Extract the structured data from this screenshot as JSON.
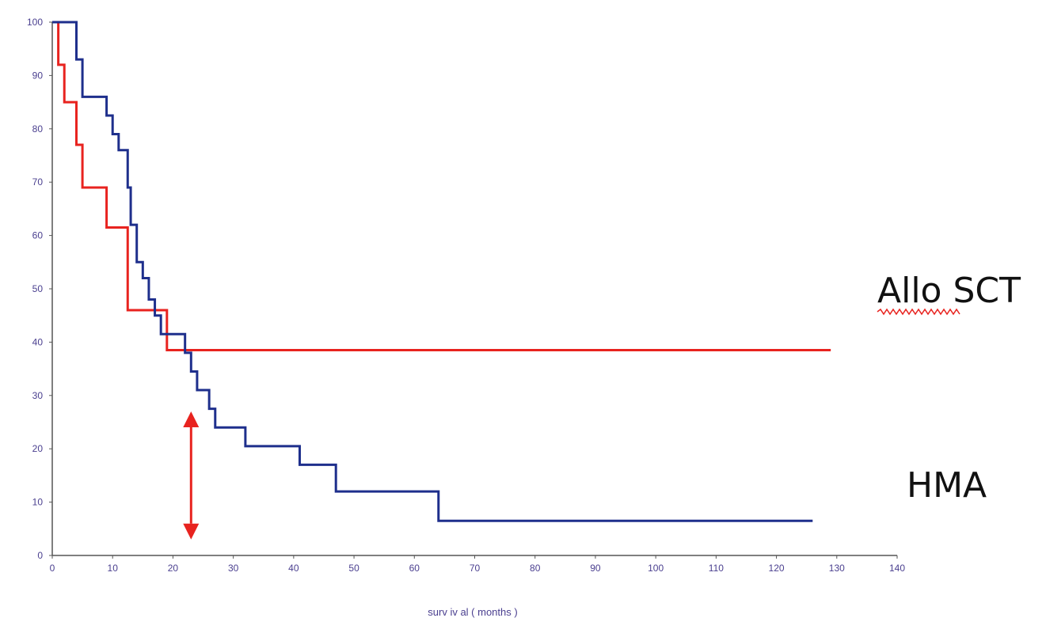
{
  "chart_data": {
    "type": "line",
    "step": true,
    "xlabel": "surv iv al ( months )",
    "ylabel": "",
    "title": "",
    "xlim": [
      0,
      140
    ],
    "ylim": [
      0,
      100
    ],
    "x_ticks": [
      0,
      10,
      20,
      30,
      40,
      50,
      60,
      70,
      80,
      90,
      100,
      110,
      120,
      130,
      140
    ],
    "y_ticks": [
      0,
      10,
      20,
      30,
      40,
      50,
      60,
      70,
      80,
      90,
      100
    ],
    "grid": false,
    "series": [
      {
        "name": "Allo SCT",
        "color": "#e8231f",
        "x": [
          0,
          1,
          2,
          4,
          5,
          9,
          12.5,
          19,
          129
        ],
        "y": [
          100,
          92,
          85,
          77,
          69,
          61.5,
          46,
          38.5,
          38.5
        ]
      },
      {
        "name": "HMA",
        "color": "#1e2f8c",
        "x": [
          0,
          3,
          4,
          5,
          9,
          10,
          11,
          12.5,
          13,
          14,
          15,
          16,
          17,
          18,
          22,
          23,
          24,
          26,
          27,
          32,
          41,
          47,
          64,
          126
        ],
        "y": [
          100,
          100,
          93,
          86,
          82.5,
          79,
          76,
          69,
          62,
          55,
          52,
          48,
          45,
          41.5,
          38,
          34.5,
          31,
          27.5,
          24,
          20.5,
          17,
          12,
          6.5,
          6.5
        ]
      }
    ],
    "annotations": [
      {
        "type": "double-arrow",
        "x": 23,
        "y_from": 27,
        "y_to": 3,
        "color": "#e8231f"
      }
    ]
  }
}
